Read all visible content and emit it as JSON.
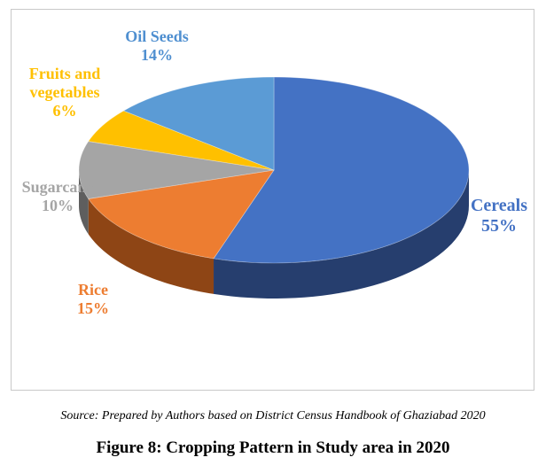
{
  "chart_data": {
    "type": "pie",
    "slices": [
      {
        "name": "Cereals",
        "value": 55,
        "value_label": "55%",
        "color": "#4472C4",
        "dark": "#263E6E"
      },
      {
        "name": "Rice",
        "value": 15,
        "value_label": "15%",
        "color": "#ED7D31",
        "dark": "#8E4515"
      },
      {
        "name": "Sugarcane",
        "value": 10,
        "value_label": "10%",
        "color": "#A5A5A5",
        "dark": "#5E5E5E"
      },
      {
        "name": "Fruits and vegetables",
        "value": 6,
        "value_label": "6%",
        "color": "#FFC000",
        "dark": "#9C7400"
      },
      {
        "name": "Oil Seeds",
        "value": 14,
        "value_label": "14%",
        "color": "#5B9BD5",
        "dark": "#2F5E8A"
      }
    ],
    "style": "3d",
    "labels_outside": true
  },
  "source_note": "Source: Prepared by Authors based on District Census Handbook of Ghaziabad 2020",
  "caption": "Figure 8: Cropping Pattern in Study area in 2020"
}
